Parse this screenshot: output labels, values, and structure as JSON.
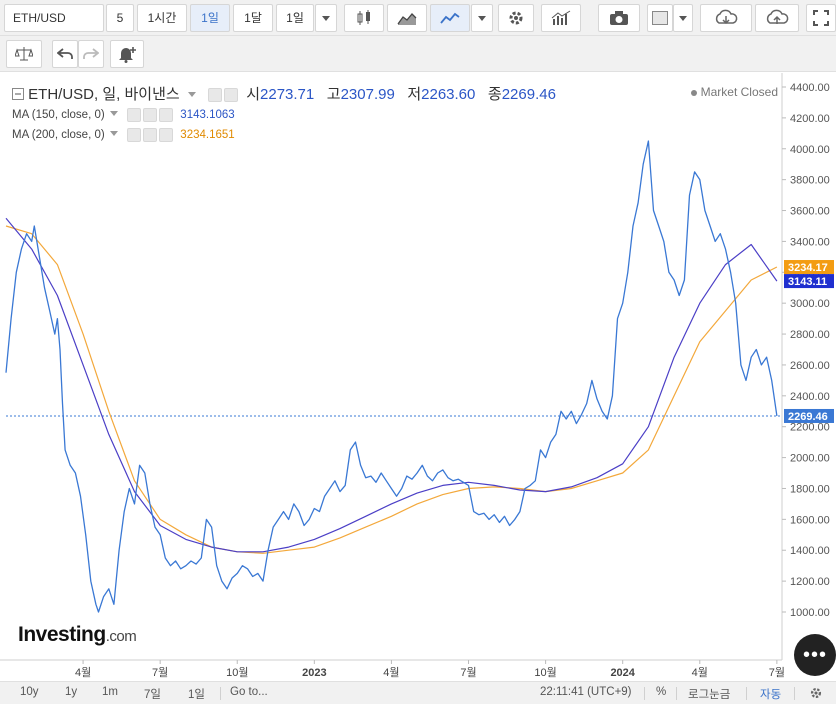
{
  "toolbar": {
    "symbol": "ETH/USD",
    "intervals": [
      "5",
      "1시간",
      "1일",
      "1달",
      "1일"
    ],
    "active_interval_index": 2
  },
  "legend": {
    "title": "ETH/USD, 일, 바이낸스",
    "open_label": "시",
    "open": "2273.71",
    "high_label": "고",
    "high": "2307.99",
    "low_label": "저",
    "low": "2263.60",
    "close_label": "종",
    "close": "2269.46",
    "ma150_label": "MA (150, close, 0)",
    "ma150_value": "3143.1063",
    "ma200_label": "MA (200, close, 0)",
    "ma200_value": "3234.1651",
    "market_status": "Market Closed"
  },
  "bottom_bar": {
    "periods": [
      "10y",
      "1y",
      "1m",
      "7일",
      "1일"
    ],
    "goto": "Go to...",
    "time": "22:11:41 (UTC+9)",
    "percent": "%",
    "log": "로그눈금",
    "auto": "자동"
  },
  "logo": {
    "brand": "Investing",
    "suffix": ".com"
  },
  "colors": {
    "price": "#3a78d4",
    "ma150": "#4b3fc6",
    "ma200": "#f3a83b",
    "close_tag": "#3a78d4",
    "ma200_tag": "#f39c12",
    "ma150_tag": "#1f2fcf"
  },
  "chart_data": {
    "type": "line",
    "ylim": [
      800,
      4400
    ],
    "yticks": [
      1000,
      1200,
      1400,
      1600,
      1800,
      2000,
      2200,
      2400,
      2600,
      2800,
      3000,
      3200,
      3400,
      3600,
      3800,
      4000,
      4200,
      4400
    ],
    "xlim": [
      0,
      30.2
    ],
    "xtick_labels": [
      {
        "label": "4월",
        "x": 3.0
      },
      {
        "label": "7월",
        "x": 6.0
      },
      {
        "label": "10월",
        "x": 9.0
      },
      {
        "label": "2023",
        "x": 12.0
      },
      {
        "label": "4월",
        "x": 15.0
      },
      {
        "label": "7월",
        "x": 18.0
      },
      {
        "label": "10월",
        "x": 21.0
      },
      {
        "label": "2024",
        "x": 24.0
      },
      {
        "label": "4월",
        "x": 27.0
      },
      {
        "label": "7월",
        "x": 30.0
      }
    ],
    "last_close": 2269.46,
    "tags": [
      {
        "value": 3234.17,
        "label": "3234.17",
        "color_key": "ma200_tag"
      },
      {
        "value": 3143.11,
        "label": "3143.11",
        "color_key": "ma150_tag"
      },
      {
        "value": 2269.46,
        "label": "2269.46",
        "color_key": "close_tag"
      }
    ],
    "series": [
      {
        "key": "price",
        "points": [
          [
            0.0,
            2550
          ],
          [
            0.2,
            2900
          ],
          [
            0.4,
            3200
          ],
          [
            0.6,
            3350
          ],
          [
            0.8,
            3450
          ],
          [
            1.0,
            3400
          ],
          [
            1.1,
            3500
          ],
          [
            1.3,
            3300
          ],
          [
            1.5,
            3100
          ],
          [
            1.7,
            2950
          ],
          [
            1.9,
            2800
          ],
          [
            2.0,
            2900
          ],
          [
            2.1,
            2700
          ],
          [
            2.2,
            2350
          ],
          [
            2.3,
            2050
          ],
          [
            2.5,
            1950
          ],
          [
            2.7,
            1900
          ],
          [
            2.9,
            1750
          ],
          [
            3.1,
            1500
          ],
          [
            3.3,
            1200
          ],
          [
            3.5,
            1050
          ],
          [
            3.6,
            1000
          ],
          [
            3.8,
            1100
          ],
          [
            4.0,
            1150
          ],
          [
            4.2,
            1050
          ],
          [
            4.4,
            1400
          ],
          [
            4.6,
            1650
          ],
          [
            4.8,
            1800
          ],
          [
            5.0,
            1700
          ],
          [
            5.2,
            1950
          ],
          [
            5.4,
            1900
          ],
          [
            5.6,
            1700
          ],
          [
            5.8,
            1550
          ],
          [
            6.0,
            1500
          ],
          [
            6.2,
            1350
          ],
          [
            6.4,
            1300
          ],
          [
            6.6,
            1330
          ],
          [
            6.8,
            1280
          ],
          [
            7.0,
            1300
          ],
          [
            7.2,
            1330
          ],
          [
            7.4,
            1310
          ],
          [
            7.6,
            1350
          ],
          [
            7.8,
            1600
          ],
          [
            8.0,
            1550
          ],
          [
            8.2,
            1300
          ],
          [
            8.4,
            1200
          ],
          [
            8.6,
            1150
          ],
          [
            8.8,
            1220
          ],
          [
            9.0,
            1250
          ],
          [
            9.2,
            1300
          ],
          [
            9.4,
            1280
          ],
          [
            9.6,
            1230
          ],
          [
            9.8,
            1250
          ],
          [
            10.0,
            1200
          ],
          [
            10.2,
            1400
          ],
          [
            10.4,
            1550
          ],
          [
            10.6,
            1600
          ],
          [
            10.8,
            1650
          ],
          [
            11.0,
            1600
          ],
          [
            11.2,
            1700
          ],
          [
            11.4,
            1650
          ],
          [
            11.6,
            1560
          ],
          [
            11.8,
            1600
          ],
          [
            12.0,
            1670
          ],
          [
            12.2,
            1650
          ],
          [
            12.4,
            1750
          ],
          [
            12.6,
            1800
          ],
          [
            12.8,
            1850
          ],
          [
            13.0,
            1780
          ],
          [
            13.2,
            1820
          ],
          [
            13.4,
            2050
          ],
          [
            13.6,
            2100
          ],
          [
            13.8,
            1950
          ],
          [
            14.0,
            1870
          ],
          [
            14.2,
            1880
          ],
          [
            14.4,
            1840
          ],
          [
            14.6,
            1900
          ],
          [
            14.8,
            1850
          ],
          [
            15.0,
            1800
          ],
          [
            15.2,
            1750
          ],
          [
            15.4,
            1800
          ],
          [
            15.6,
            1880
          ],
          [
            15.8,
            1860
          ],
          [
            16.0,
            1900
          ],
          [
            16.2,
            1950
          ],
          [
            16.4,
            1880
          ],
          [
            16.6,
            1850
          ],
          [
            16.8,
            1900
          ],
          [
            17.0,
            1920
          ],
          [
            17.2,
            1870
          ],
          [
            17.4,
            1850
          ],
          [
            17.6,
            1860
          ],
          [
            17.8,
            1840
          ],
          [
            18.0,
            1820
          ],
          [
            18.2,
            1650
          ],
          [
            18.4,
            1630
          ],
          [
            18.6,
            1640
          ],
          [
            18.8,
            1600
          ],
          [
            19.0,
            1630
          ],
          [
            19.2,
            1580
          ],
          [
            19.4,
            1620
          ],
          [
            19.6,
            1560
          ],
          [
            19.8,
            1600
          ],
          [
            20.0,
            1650
          ],
          [
            20.2,
            1800
          ],
          [
            20.4,
            1820
          ],
          [
            20.6,
            1850
          ],
          [
            20.8,
            2050
          ],
          [
            21.0,
            2000
          ],
          [
            21.2,
            2100
          ],
          [
            21.4,
            2150
          ],
          [
            21.6,
            2300
          ],
          [
            21.8,
            2250
          ],
          [
            22.0,
            2300
          ],
          [
            22.2,
            2220
          ],
          [
            22.4,
            2280
          ],
          [
            22.6,
            2350
          ],
          [
            22.8,
            2500
          ],
          [
            23.0,
            2380
          ],
          [
            23.2,
            2300
          ],
          [
            23.4,
            2250
          ],
          [
            23.6,
            2400
          ],
          [
            23.8,
            2900
          ],
          [
            24.0,
            3000
          ],
          [
            24.2,
            3200
          ],
          [
            24.4,
            3500
          ],
          [
            24.6,
            3650
          ],
          [
            24.8,
            3900
          ],
          [
            25.0,
            4050
          ],
          [
            25.2,
            3600
          ],
          [
            25.4,
            3500
          ],
          [
            25.6,
            3400
          ],
          [
            25.8,
            3200
          ],
          [
            26.0,
            3150
          ],
          [
            26.2,
            3050
          ],
          [
            26.4,
            3150
          ],
          [
            26.6,
            3700
          ],
          [
            26.8,
            3850
          ],
          [
            27.0,
            3800
          ],
          [
            27.2,
            3600
          ],
          [
            27.4,
            3500
          ],
          [
            27.6,
            3400
          ],
          [
            27.8,
            3450
          ],
          [
            28.0,
            3350
          ],
          [
            28.2,
            3200
          ],
          [
            28.4,
            3000
          ],
          [
            28.6,
            2600
          ],
          [
            28.8,
            2500
          ],
          [
            29.0,
            2650
          ],
          [
            29.2,
            2700
          ],
          [
            29.4,
            2600
          ],
          [
            29.6,
            2650
          ],
          [
            29.8,
            2500
          ],
          [
            30.0,
            2269.46
          ]
        ]
      },
      {
        "key": "ma200",
        "points": [
          [
            0.0,
            3500
          ],
          [
            1.0,
            3450
          ],
          [
            2.0,
            3250
          ],
          [
            3.0,
            2800
          ],
          [
            4.0,
            2300
          ],
          [
            5.0,
            1850
          ],
          [
            6.0,
            1600
          ],
          [
            7.0,
            1500
          ],
          [
            8.0,
            1420
          ],
          [
            9.0,
            1390
          ],
          [
            10.0,
            1380
          ],
          [
            11.0,
            1400
          ],
          [
            12.0,
            1420
          ],
          [
            13.0,
            1480
          ],
          [
            14.0,
            1550
          ],
          [
            15.0,
            1620
          ],
          [
            16.0,
            1700
          ],
          [
            17.0,
            1760
          ],
          [
            18.0,
            1800
          ],
          [
            19.0,
            1810
          ],
          [
            20.0,
            1800
          ],
          [
            21.0,
            1780
          ],
          [
            22.0,
            1800
          ],
          [
            23.0,
            1850
          ],
          [
            24.0,
            1900
          ],
          [
            25.0,
            2050
          ],
          [
            26.0,
            2400
          ],
          [
            27.0,
            2750
          ],
          [
            28.0,
            2950
          ],
          [
            29.0,
            3150
          ],
          [
            30.0,
            3234.17
          ]
        ]
      },
      {
        "key": "ma150",
        "points": [
          [
            0.0,
            3550
          ],
          [
            1.0,
            3350
          ],
          [
            2.0,
            3050
          ],
          [
            3.0,
            2600
          ],
          [
            4.0,
            2150
          ],
          [
            5.0,
            1780
          ],
          [
            6.0,
            1560
          ],
          [
            7.0,
            1470
          ],
          [
            8.0,
            1420
          ],
          [
            9.0,
            1390
          ],
          [
            10.0,
            1390
          ],
          [
            11.0,
            1420
          ],
          [
            12.0,
            1470
          ],
          [
            13.0,
            1540
          ],
          [
            14.0,
            1620
          ],
          [
            15.0,
            1700
          ],
          [
            16.0,
            1770
          ],
          [
            17.0,
            1820
          ],
          [
            18.0,
            1840
          ],
          [
            19.0,
            1820
          ],
          [
            20.0,
            1790
          ],
          [
            21.0,
            1780
          ],
          [
            22.0,
            1810
          ],
          [
            23.0,
            1870
          ],
          [
            24.0,
            1960
          ],
          [
            25.0,
            2200
          ],
          [
            26.0,
            2650
          ],
          [
            27.0,
            3000
          ],
          [
            28.0,
            3250
          ],
          [
            29.0,
            3380
          ],
          [
            30.0,
            3143.11
          ]
        ]
      }
    ]
  }
}
